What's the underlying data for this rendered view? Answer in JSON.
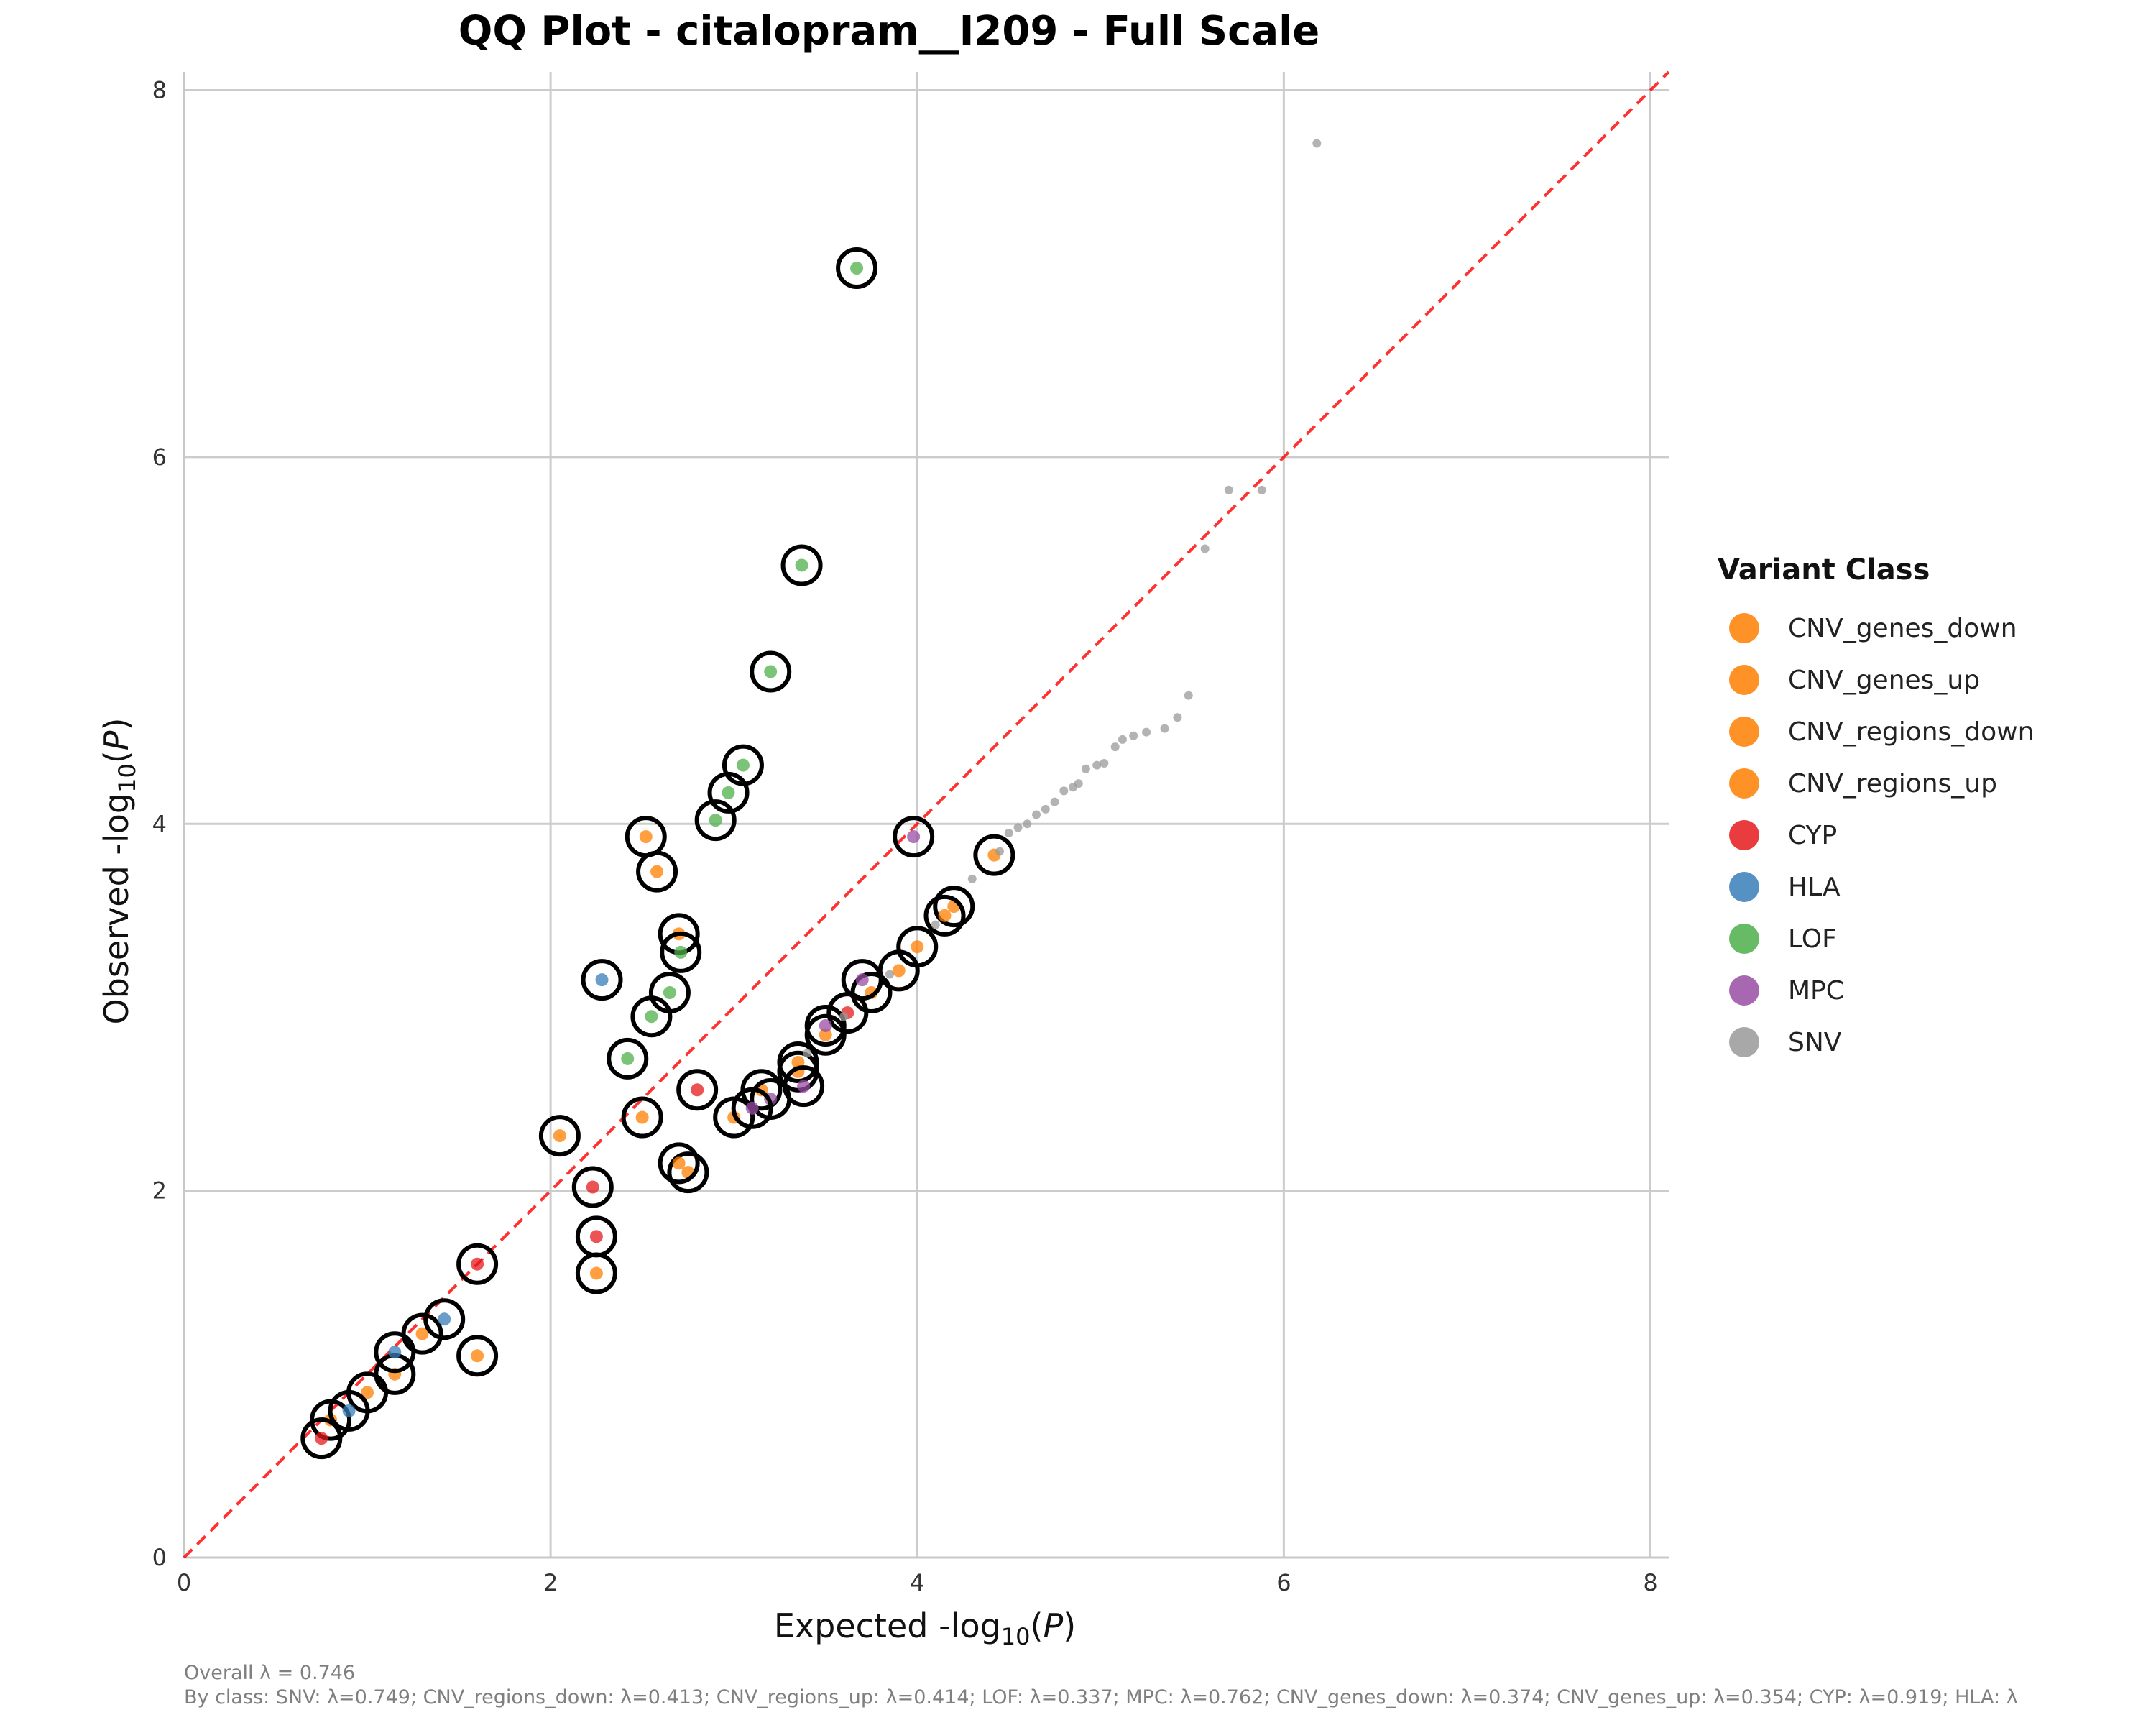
{
  "chart_data": {
    "type": "scatter",
    "title": "QQ Plot - citalopram__I209 - Full Scale",
    "xlabel": "Expected -log10(P)",
    "ylabel": "Observed -log10(P)",
    "xlim": [
      0,
      8.1
    ],
    "ylim": [
      0,
      8.1
    ],
    "xticks": [
      "0",
      "2",
      "4",
      "6",
      "8"
    ],
    "yticks": [
      "0",
      "2",
      "4",
      "6",
      "8"
    ],
    "grid": true,
    "diagonal_reference": {
      "color": "#ff0000",
      "style": "dashed"
    },
    "legend_title": "Variant Class",
    "legend_placement": "right",
    "series": [
      {
        "name": "CNV_genes_down",
        "color": "#ff7f00",
        "points": [
          [
            1.0,
            0.9
          ],
          [
            1.3,
            1.22
          ],
          [
            2.05,
            2.3
          ],
          [
            2.5,
            2.4
          ],
          [
            2.75,
            2.1
          ],
          [
            3.5,
            2.85
          ],
          [
            3.75,
            3.08
          ],
          [
            3.9,
            3.2
          ],
          [
            4.0,
            3.33
          ],
          [
            4.2,
            3.55
          ],
          [
            4.42,
            3.83
          ]
        ]
      },
      {
        "name": "CNV_genes_up",
        "color": "#ff7f00",
        "points": [
          [
            1.15,
            1.0
          ],
          [
            2.52,
            3.93
          ],
          [
            2.58,
            3.74
          ],
          [
            2.7,
            3.4
          ],
          [
            3.35,
            2.65
          ],
          [
            4.15,
            3.5
          ]
        ]
      },
      {
        "name": "CNV_regions_down",
        "color": "#ff7f00",
        "points": [
          [
            0.8,
            0.75
          ],
          [
            2.25,
            1.55
          ],
          [
            2.7,
            2.15
          ],
          [
            3.0,
            2.4
          ]
        ]
      },
      {
        "name": "CNV_regions_up",
        "color": "#ff7f00",
        "points": [
          [
            1.6,
            1.1
          ],
          [
            3.35,
            2.7
          ],
          [
            3.15,
            2.55
          ]
        ]
      },
      {
        "name": "CYP",
        "color": "#e41a1c",
        "points": [
          [
            0.75,
            0.65
          ],
          [
            1.6,
            1.6
          ],
          [
            2.25,
            1.75
          ],
          [
            2.23,
            2.02
          ],
          [
            2.8,
            2.55
          ],
          [
            3.62,
            2.97
          ]
        ]
      },
      {
        "name": "HLA",
        "color": "#377eb8",
        "points": [
          [
            1.15,
            1.12
          ],
          [
            1.42,
            1.3
          ],
          [
            2.28,
            3.15
          ],
          [
            0.9,
            0.8
          ]
        ]
      },
      {
        "name": "LOF",
        "color": "#4daf4a",
        "points": [
          [
            3.67,
            7.03
          ],
          [
            3.37,
            5.41
          ],
          [
            3.2,
            4.83
          ],
          [
            3.05,
            4.32
          ],
          [
            2.97,
            4.17
          ],
          [
            2.9,
            4.02
          ],
          [
            2.71,
            3.3
          ],
          [
            2.65,
            3.08
          ],
          [
            2.42,
            2.72
          ],
          [
            2.55,
            2.95
          ]
        ]
      },
      {
        "name": "MPC",
        "color": "#984ea3",
        "points": [
          [
            3.98,
            3.93
          ],
          [
            3.38,
            2.57
          ],
          [
            3.7,
            3.15
          ],
          [
            3.2,
            2.5
          ],
          [
            3.1,
            2.45
          ],
          [
            3.5,
            2.9
          ]
        ]
      },
      {
        "name": "SNV",
        "color": "#999999",
        "points": [
          [
            6.18,
            7.71
          ],
          [
            5.88,
            5.82
          ],
          [
            5.7,
            5.82
          ],
          [
            5.57,
            5.5
          ],
          [
            5.48,
            4.7
          ],
          [
            5.42,
            4.58
          ],
          [
            5.35,
            4.52
          ],
          [
            5.25,
            4.5
          ],
          [
            5.18,
            4.48
          ],
          [
            5.12,
            4.46
          ],
          [
            5.08,
            4.42
          ],
          [
            5.02,
            4.33
          ],
          [
            4.98,
            4.32
          ],
          [
            4.92,
            4.3
          ],
          [
            4.88,
            4.22
          ],
          [
            4.85,
            4.2
          ],
          [
            4.8,
            4.18
          ],
          [
            4.75,
            4.12
          ],
          [
            4.7,
            4.08
          ],
          [
            4.65,
            4.05
          ],
          [
            4.6,
            4.0
          ],
          [
            4.55,
            3.98
          ],
          [
            4.5,
            3.95
          ],
          [
            4.45,
            3.85
          ],
          [
            4.3,
            3.7
          ],
          [
            4.1,
            3.45
          ],
          [
            3.85,
            3.18
          ],
          [
            3.6,
            2.95
          ],
          [
            3.4,
            2.75
          ]
        ]
      }
    ]
  },
  "footer": {
    "overall": "Overall λ = 0.746",
    "by_class": "By class: SNV: λ=0.749; CNV_regions_down: λ=0.413; CNV_regions_up: λ=0.414; LOF: λ=0.337; MPC: λ=0.762; CNV_genes_down: λ=0.374; CNV_genes_up: λ=0.354; CYP: λ=0.919; HLA: λ"
  }
}
